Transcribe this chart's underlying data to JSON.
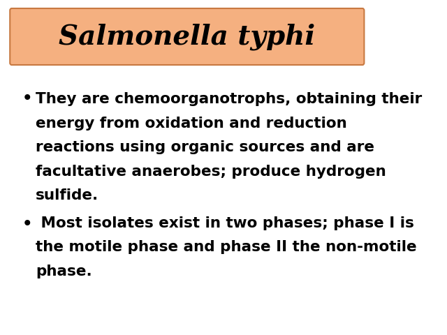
{
  "title": "Salmonella typhi",
  "title_color": "#000000",
  "title_fontsize": 28,
  "title_style": "italic",
  "title_weight": "bold",
  "header_bg_top": "#f5b895",
  "header_bg_bottom": "#f9d4b8",
  "bg_color": "#ffffff",
  "bullet1_plain": "They are ",
  "bullet1_underline": "chemoorganotrophs",
  "bullet1_rest1": ", obtaining their\nenergy from oxidation and reduction\nreactions using organic sources and are\n",
  "bullet1_underline2": "facultative anaerobes",
  "bullet1_rest2": "; produce ",
  "bullet1_underline3": "hydrogen\nsulfide",
  "bullet1_rest3": ".",
  "bullet2_plain": " Most isolates ",
  "bullet2_underline": "exist in two phases; phase I is\nthe motile phase and phase II the non-motile\nphase.",
  "text_fontsize": 15.5,
  "text_color": "#000000",
  "text_weight": "bold"
}
